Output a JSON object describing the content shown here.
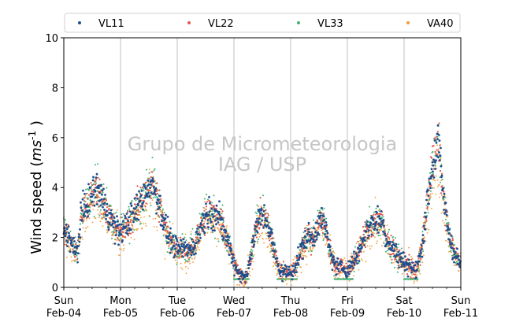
{
  "chart_data": {
    "type": "scatter",
    "ylabel_parts": [
      "Wind speed (",
      "ms",
      "-1",
      " )"
    ],
    "ylim": [
      0,
      10
    ],
    "y_ticks": [
      0,
      2,
      4,
      6,
      8,
      10
    ],
    "xlim_days": [
      0,
      7
    ],
    "x_ticks": [
      {
        "day": 0,
        "weekday": "Sun",
        "date": "Feb-04"
      },
      {
        "day": 1,
        "weekday": "Mon",
        "date": "Feb-05"
      },
      {
        "day": 2,
        "weekday": "Tue",
        "date": "Feb-06"
      },
      {
        "day": 3,
        "weekday": "Wed",
        "date": "Feb-07"
      },
      {
        "day": 4,
        "weekday": "Thu",
        "date": "Feb-08"
      },
      {
        "day": 5,
        "weekday": "Fri",
        "date": "Feb-09"
      },
      {
        "day": 6,
        "weekday": "Sat",
        "date": "Feb-10"
      },
      {
        "day": 7,
        "weekday": "Sun",
        "date": "Feb-11"
      }
    ],
    "grid": "vertical",
    "legend_position": "top",
    "watermark_lines": [
      "Grupo de Micrometeorologia",
      "IAG / USP"
    ],
    "series": [
      {
        "name": "VL11",
        "color": "#1f4e8c"
      },
      {
        "name": "VL22",
        "color": "#e0584b"
      },
      {
        "name": "VL33",
        "color": "#3cb371"
      },
      {
        "name": "VA40",
        "color": "#f39c34"
      }
    ],
    "approx_mean_speed": {
      "note_units": "m s-1, by day offset from Feb-04 00:00",
      "day": [
        0.0,
        0.1,
        0.2,
        0.25,
        0.3,
        0.4,
        0.5,
        0.6,
        0.7,
        0.8,
        0.9,
        1.0,
        1.1,
        1.2,
        1.3,
        1.4,
        1.5,
        1.6,
        1.7,
        1.8,
        1.9,
        2.0,
        2.1,
        2.2,
        2.3,
        2.4,
        2.5,
        2.6,
        2.7,
        2.8,
        2.9,
        3.0,
        3.1,
        3.2,
        3.3,
        3.4,
        3.5,
        3.6,
        3.7,
        3.8,
        3.9,
        4.0,
        4.1,
        4.2,
        4.3,
        4.4,
        4.5,
        4.6,
        4.7,
        4.8,
        4.9,
        5.0,
        5.1,
        5.2,
        5.3,
        5.4,
        5.5,
        5.6,
        5.7,
        5.8,
        5.9,
        6.0,
        6.1,
        6.2,
        6.3,
        6.4,
        6.5,
        6.6,
        6.7,
        6.8,
        6.9,
        7.0
      ],
      "value": [
        2.4,
        2.0,
        1.4,
        1.5,
        2.8,
        3.3,
        3.7,
        4.0,
        3.4,
        2.9,
        2.4,
        2.2,
        2.5,
        2.8,
        3.2,
        3.7,
        4.1,
        4.0,
        3.2,
        2.3,
        1.8,
        1.5,
        1.6,
        1.5,
        1.7,
        2.3,
        2.9,
        3.0,
        2.9,
        2.4,
        1.8,
        1.0,
        0.5,
        0.4,
        1.3,
        2.5,
        2.9,
        2.6,
        1.5,
        0.7,
        0.6,
        0.6,
        0.9,
        1.6,
        2.1,
        1.9,
        2.8,
        2.5,
        1.4,
        0.8,
        0.8,
        0.7,
        1.0,
        1.4,
        2.1,
        2.5,
        2.7,
        2.7,
        1.9,
        1.6,
        1.2,
        1.0,
        0.9,
        0.6,
        1.4,
        3.3,
        4.9,
        5.8,
        3.5,
        2.0,
        1.3,
        0.9
      ]
    },
    "vl33_floor_segment": {
      "day_start": 3.0,
      "day_end": 6.45,
      "value": 0.33
    }
  }
}
